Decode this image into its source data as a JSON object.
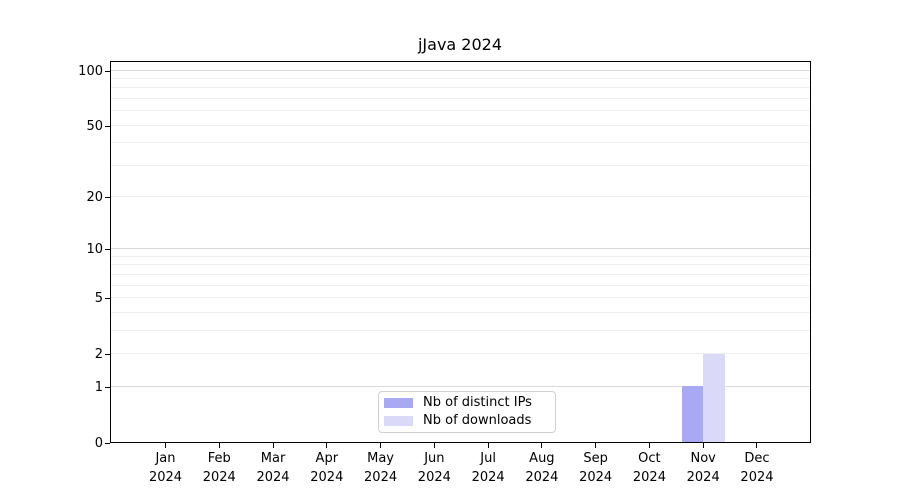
{
  "chart_data": {
    "type": "bar",
    "title": "jJava 2024",
    "categories": [
      "Jan 2024",
      "Feb 2024",
      "Mar 2024",
      "Apr 2024",
      "May 2024",
      "Jun 2024",
      "Jul 2024",
      "Aug 2024",
      "Sep 2024",
      "Oct 2024",
      "Nov 2024",
      "Dec 2024"
    ],
    "series": [
      {
        "name": "Nb of distinct IPs",
        "color": "#a9a9f3",
        "values": [
          0,
          0,
          0,
          0,
          0,
          0,
          0,
          0,
          0,
          0,
          1,
          0
        ]
      },
      {
        "name": "Nb of downloads",
        "color": "#dadaf8",
        "values": [
          0,
          0,
          0,
          0,
          0,
          0,
          0,
          0,
          0,
          0,
          2,
          0
        ]
      }
    ],
    "xlabel": "",
    "ylabel": "",
    "yscale": "log1p",
    "ylim": [
      0,
      110.8
    ],
    "yticks": [
      0,
      1,
      2,
      5,
      10,
      20,
      50,
      100
    ],
    "grid": {
      "on": true,
      "major_lines": [
        1,
        10,
        100
      ],
      "minor_lines": [
        2,
        3,
        4,
        5,
        6,
        7,
        8,
        9,
        20,
        30,
        40,
        50,
        60,
        70,
        80,
        90
      ],
      "major_color": "#d9d9d9",
      "minor_color": "#efefef"
    },
    "legend_position": "lower center"
  }
}
